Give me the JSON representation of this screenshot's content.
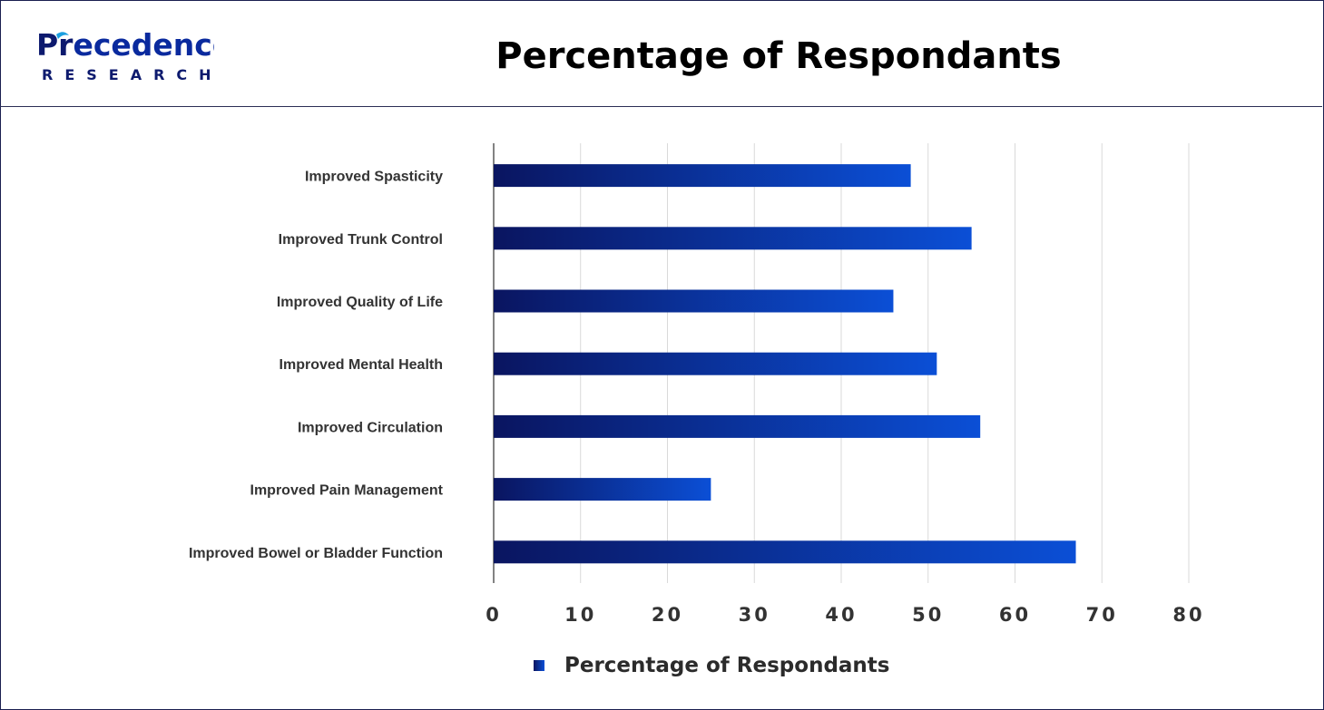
{
  "logo": {
    "name": "Precedence",
    "sub": "RESEARCH"
  },
  "colors": {
    "bar_start": "#0a1560",
    "bar_end": "#0b4fd6",
    "grid": "#d9d9d9",
    "axis": "#5a5a5a"
  },
  "chart_data": {
    "type": "bar",
    "orientation": "horizontal",
    "title": "Percentage of Respondants",
    "categories": [
      "Improved Spasticity",
      "Improved Trunk Control",
      "Improved Quality of Life",
      "Improved Mental Health",
      "Improved Circulation",
      "Improved Pain Management",
      "Improved Bowel or Bladder Function"
    ],
    "series": [
      {
        "name": "Percentage of Respondants",
        "values": [
          48,
          55,
          46,
          51,
          56,
          25,
          67
        ]
      }
    ],
    "xlim": [
      0,
      80
    ],
    "xticks": [
      0,
      10,
      20,
      30,
      40,
      50,
      60,
      70,
      80
    ],
    "grid": true,
    "legend": "bottom"
  }
}
